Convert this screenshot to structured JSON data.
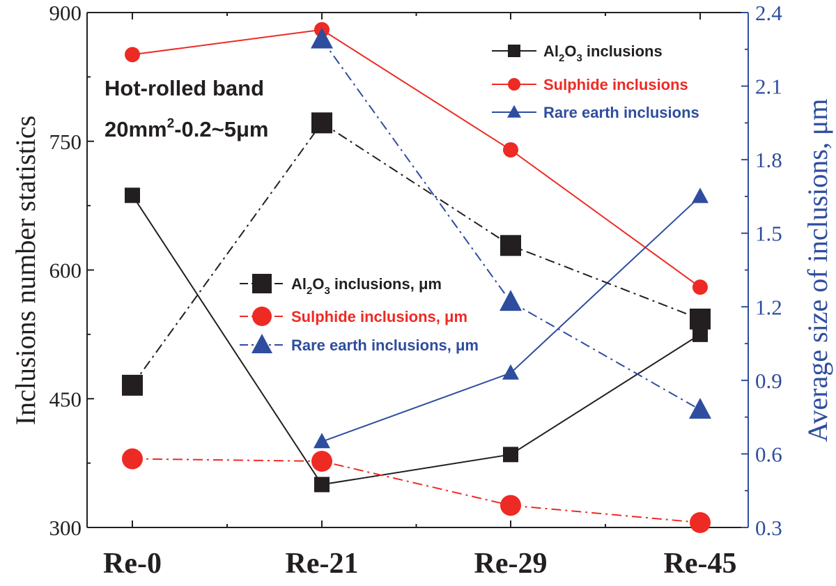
{
  "chart_data": {
    "type": "line",
    "categories": [
      "Re-0",
      "Re-21",
      "Re-29",
      "Re-45"
    ],
    "title": "",
    "ylabel_left": "Inclusions number statistics",
    "ylabel_right": "Average size of inclusions, μm",
    "ylim_left": [
      300,
      900
    ],
    "ylim_right": [
      0.3,
      2.4
    ],
    "yticks_left": [
      "300",
      "450",
      "600",
      "750",
      "900"
    ],
    "yticks_right": [
      "0.3",
      "0.6",
      "0.9",
      "1.2",
      "1.5",
      "1.8",
      "2.1",
      "2.4"
    ],
    "annotation": {
      "line1": "Hot-rolled band",
      "line2_prefix": "20mm",
      "line2_sup": "2",
      "line2_suffix": "-0.2~5μm"
    },
    "series": [
      {
        "name": "Al2O3 inclusions",
        "axis": "left",
        "marker": "square",
        "style": "solid",
        "color": "#231f20",
        "values": [
          687,
          350,
          385,
          525
        ]
      },
      {
        "name": "Sulphide inclusions",
        "axis": "left",
        "marker": "circle",
        "style": "solid",
        "color": "#ee2a24",
        "values": [
          851,
          880,
          740,
          580
        ]
      },
      {
        "name": "Rare earth inclusions",
        "axis": "right",
        "marker": "triangle",
        "style": "solid",
        "color": "#2e4d9f",
        "values": [
          null,
          0.65,
          0.93,
          1.65
        ]
      },
      {
        "name": "Al2O3 inclusions, μm",
        "axis": "right",
        "marker": "square",
        "style": "dashdot",
        "color": "#231f20",
        "values": [
          0.88,
          1.95,
          1.45,
          1.15
        ]
      },
      {
        "name": "Sulphide inclusions, μm",
        "axis": "right",
        "marker": "circle",
        "style": "dashdot",
        "color": "#ee2a24",
        "values": [
          0.58,
          0.57,
          0.39,
          0.32
        ]
      },
      {
        "name": "Rare earth inclusions, μm",
        "axis": "right",
        "marker": "triangle",
        "style": "dashdot",
        "color": "#2e4d9f",
        "values": [
          null,
          2.29,
          1.22,
          0.78
        ]
      }
    ],
    "legend_top": {
      "placement": "top-right",
      "items": [
        {
          "prefix": "Al",
          "sub1": "2",
          "mid": "O",
          "sub2": "3",
          "suffix": " inclusions",
          "color": "#231f20",
          "text_color": "#231f20",
          "marker": "square",
          "style": "solid"
        },
        {
          "prefix": "Sulphide inclusions",
          "color": "#ee2a24",
          "text_color": "#ee2a24",
          "marker": "circle",
          "style": "solid"
        },
        {
          "prefix": "Rare earth inclusions",
          "color": "#2e4d9f",
          "text_color": "#2e4d9f",
          "marker": "triangle",
          "style": "solid"
        }
      ]
    },
    "legend_mid": {
      "placement": "center",
      "items": [
        {
          "prefix": "Al",
          "sub1": "2",
          "mid": "O",
          "sub2": "3",
          "suffix": " inclusions, μm",
          "color": "#231f20",
          "text_color": "#231f20",
          "marker": "square",
          "style": "dashdot"
        },
        {
          "prefix": "Sulphide inclusions, μm",
          "color": "#ee2a24",
          "text_color": "#ee2a24",
          "marker": "circle",
          "style": "dashdot"
        },
        {
          "prefix": "Rare earth inclusions, μm",
          "color": "#2e4d9f",
          "text_color": "#2e4d9f",
          "marker": "triangle",
          "style": "dashdot"
        }
      ]
    },
    "colors": {
      "left_axis": "#231f20",
      "right_axis": "#2e4d9f"
    }
  }
}
